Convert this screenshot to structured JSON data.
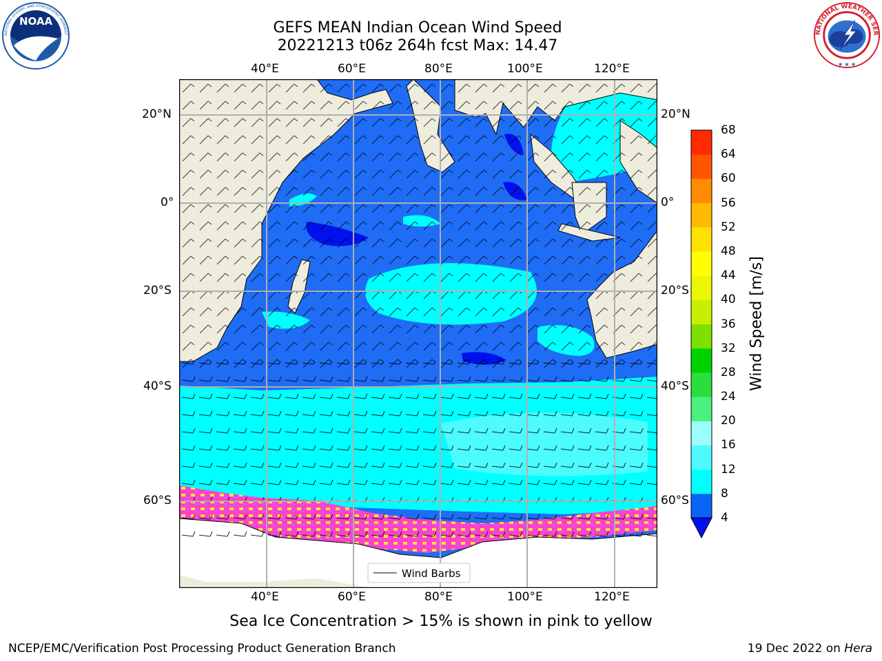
{
  "header": {
    "title_line1": "GEFS MEAN Indian Ocean Wind Speed",
    "title_line2": "20221213 t06z 264h fcst   Max: 14.47"
  },
  "logos": {
    "noaa": {
      "text": "NOAA",
      "ring_text": "NATIONAL OCEANIC AND ATMOSPHERIC ADMINISTRATION · U.S. DEPARTMENT OF COMMERCE"
    },
    "nws": {
      "ring_text": "NATIONAL WEATHER SERVICE"
    }
  },
  "map": {
    "lon_ticks": [
      "40°E",
      "60°E",
      "80°E",
      "100°E",
      "120°E"
    ],
    "lat_ticks": [
      "20°N",
      "0°",
      "20°S",
      "40°S",
      "60°S"
    ],
    "legend_label": "Wind Barbs",
    "colors": {
      "land": "#eeecdc",
      "ocean_base": "#1f6cf5",
      "deep": "#0011ee",
      "cyan": "#00ffff",
      "light_cyan": "#4dfbff",
      "ice_pink": "#ff40c8",
      "ice_yellow": "#ffe33f"
    }
  },
  "colorbar": {
    "label": "Wind Speed [m/s]",
    "ticks": [
      "4",
      "8",
      "12",
      "16",
      "20",
      "24",
      "28",
      "32",
      "36",
      "40",
      "44",
      "48",
      "52",
      "56",
      "60",
      "64",
      "68"
    ],
    "colors": [
      "#0a64f5",
      "#00ffff",
      "#4dfbff",
      "#9cfdfd",
      "#4bf07e",
      "#2ade3d",
      "#00d200",
      "#7ee000",
      "#c7f000",
      "#e9f800",
      "#ffff00",
      "#ffe100",
      "#ffb900",
      "#ff8c00",
      "#ff5500",
      "#ff2a00",
      "#ff0000"
    ],
    "under_color": "#0010ee"
  },
  "caption": "Sea Ice Concentration > 15% is shown in pink to yellow",
  "footer": {
    "left": "NCEP/EMC/Verification Post Processing Product Generation Branch",
    "right_prefix": "19 Dec 2022 on ",
    "right_host": "Hera"
  }
}
